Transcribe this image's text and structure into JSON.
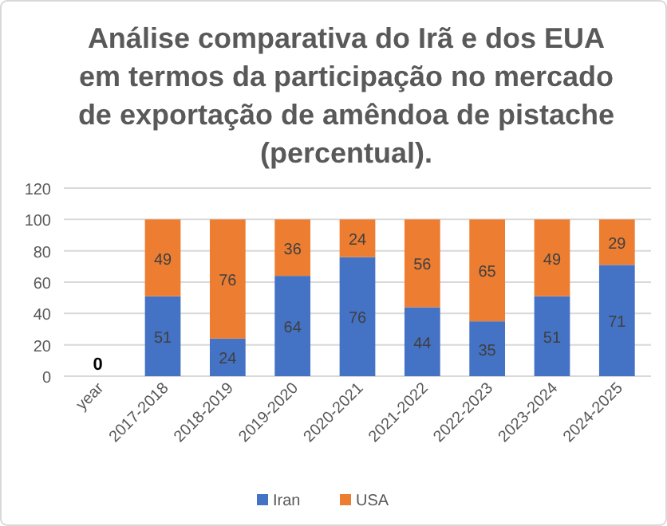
{
  "chart_data": {
    "type": "bar",
    "title": "Análise comparativa do Irã e dos EUA em termos da participação no mercado de exportação de amêndoa de pistache (percentual).",
    "categories": [
      "year",
      "2017-2018",
      "2018-2019",
      "2019-2020",
      "2020-2021",
      "2021-2022",
      "2022-2023",
      "2023-2024",
      "2024-2025"
    ],
    "series": [
      {
        "name": "Iran",
        "color": "#4472c4",
        "values": [
          0,
          51,
          24,
          64,
          76,
          44,
          35,
          51,
          71
        ]
      },
      {
        "name": "USA",
        "color": "#ed7d31",
        "values": [
          null,
          49,
          76,
          36,
          24,
          56,
          65,
          49,
          29
        ]
      }
    ],
    "stacked": true,
    "data_labels": true,
    "ylim": [
      0,
      120
    ],
    "yticks": [
      0,
      20,
      40,
      60,
      80,
      100,
      120
    ],
    "grid": "y",
    "legend": "bottom"
  }
}
